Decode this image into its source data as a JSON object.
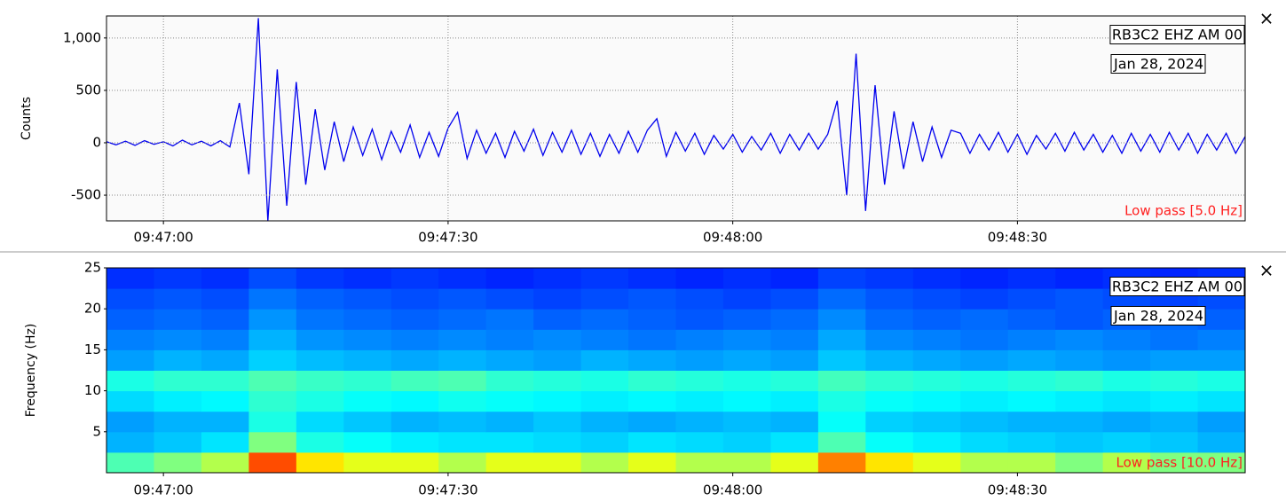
{
  "chart_data": [
    {
      "type": "line",
      "ylabel": "Counts",
      "station": "RB3C2 EHZ AM 00",
      "date": "Jan 28, 2024",
      "filter": "Low pass [5.0 Hz]",
      "close": "×",
      "color": "#0000ee",
      "grid": true,
      "xlim": [
        "09:46:54",
        "09:48:54"
      ],
      "xticks": [
        "09:47:00",
        "09:47:30",
        "09:48:00",
        "09:48:30"
      ],
      "ylim": [
        -745,
        1210
      ],
      "yticks": [
        -500,
        0,
        500,
        {
          "value": 1000,
          "label": "1,000"
        }
      ],
      "x": [
        "09:46:54",
        "09:46:55",
        "09:46:56",
        "09:46:57",
        "09:46:58",
        "09:46:59",
        "09:47:00",
        "09:47:01",
        "09:47:02",
        "09:47:03",
        "09:47:04",
        "09:47:05",
        "09:47:06",
        "09:47:07",
        "09:47:08",
        "09:47:09",
        "09:47:10",
        "09:47:11",
        "09:47:12",
        "09:47:13",
        "09:47:14",
        "09:47:15",
        "09:47:16",
        "09:47:17",
        "09:47:18",
        "09:47:19",
        "09:47:20",
        "09:47:21",
        "09:47:22",
        "09:47:23",
        "09:47:24",
        "09:47:25",
        "09:47:26",
        "09:47:27",
        "09:47:28",
        "09:47:29",
        "09:47:30",
        "09:47:31",
        "09:47:32",
        "09:47:33",
        "09:47:34",
        "09:47:35",
        "09:47:36",
        "09:47:37",
        "09:47:38",
        "09:47:39",
        "09:47:40",
        "09:47:41",
        "09:47:42",
        "09:47:43",
        "09:47:44",
        "09:47:45",
        "09:47:46",
        "09:47:47",
        "09:47:48",
        "09:47:49",
        "09:47:50",
        "09:47:51",
        "09:47:52",
        "09:47:53",
        "09:47:54",
        "09:47:55",
        "09:47:56",
        "09:47:57",
        "09:47:58",
        "09:47:59",
        "09:48:00",
        "09:48:01",
        "09:48:02",
        "09:48:03",
        "09:48:04",
        "09:48:05",
        "09:48:06",
        "09:48:07",
        "09:48:08",
        "09:48:09",
        "09:48:10",
        "09:48:11",
        "09:48:12",
        "09:48:13",
        "09:48:14",
        "09:48:15",
        "09:48:16",
        "09:48:17",
        "09:48:18",
        "09:48:19",
        "09:48:20",
        "09:48:21",
        "09:48:22",
        "09:48:23",
        "09:48:24",
        "09:48:25",
        "09:48:26",
        "09:48:27",
        "09:48:28",
        "09:48:29",
        "09:48:30",
        "09:48:31",
        "09:48:32",
        "09:48:33",
        "09:48:34",
        "09:48:35",
        "09:48:36",
        "09:48:37",
        "09:48:38",
        "09:48:39",
        "09:48:40",
        "09:48:41",
        "09:48:42",
        "09:48:43",
        "09:48:44",
        "09:48:45",
        "09:48:46",
        "09:48:47",
        "09:48:48",
        "09:48:49",
        "09:48:50",
        "09:48:51",
        "09:48:52",
        "09:48:53",
        "09:48:54"
      ],
      "values": [
        10,
        -20,
        15,
        -25,
        20,
        -15,
        10,
        -30,
        25,
        -20,
        15,
        -30,
        20,
        -40,
        380,
        -300,
        1190,
        -750,
        700,
        -600,
        580,
        -400,
        320,
        -260,
        200,
        -180,
        150,
        -120,
        130,
        -160,
        110,
        -90,
        170,
        -140,
        100,
        -130,
        140,
        290,
        -150,
        120,
        -100,
        90,
        -140,
        110,
        -80,
        130,
        -120,
        100,
        -90,
        120,
        -110,
        90,
        -130,
        80,
        -100,
        110,
        -90,
        120,
        230,
        -130,
        100,
        -80,
        90,
        -110,
        70,
        -60,
        80,
        -90,
        60,
        -70,
        90,
        -100,
        80,
        -70,
        90,
        -60,
        80,
        400,
        -500,
        850,
        -650,
        550,
        -400,
        300,
        -250,
        200,
        -180,
        150,
        -140,
        120,
        90,
        -100,
        80,
        -70,
        100,
        -90,
        80,
        -110,
        70,
        -60,
        90,
        -80,
        100,
        -70,
        80,
        -90,
        70,
        -100,
        90,
        -80,
        80,
        -90,
        100,
        -70,
        90,
        -100,
        80,
        -70,
        90,
        -100,
        60
      ]
    },
    {
      "type": "heatmap",
      "ylabel": "Frequency (Hz)",
      "station": "RB3C2 EHZ AM 00",
      "date": "Jan 28, 2024",
      "filter": "Low pass [10.0 Hz]",
      "close": "×",
      "colormap": "jet",
      "zlim": [
        0,
        1
      ],
      "xlim": [
        "09:46:54",
        "09:48:54"
      ],
      "xticks": [
        "09:47:00",
        "09:47:30",
        "09:48:00",
        "09:48:30"
      ],
      "ylim": [
        0,
        25
      ],
      "yticks": [
        5,
        10,
        15,
        20,
        25
      ],
      "x": [
        "09:46:54",
        "09:46:59",
        "09:47:04",
        "09:47:09",
        "09:47:14",
        "09:47:19",
        "09:47:24",
        "09:47:29",
        "09:47:34",
        "09:47:39",
        "09:47:44",
        "09:47:49",
        "09:47:54",
        "09:47:59",
        "09:48:04",
        "09:48:09",
        "09:48:14",
        "09:48:19",
        "09:48:24",
        "09:48:29",
        "09:48:34",
        "09:48:39",
        "09:48:44",
        "09:48:49"
      ],
      "bins": [
        0,
        2.5,
        5,
        7.5,
        10,
        12.5,
        15,
        17.5,
        20,
        22.5,
        25
      ],
      "z": [
        [
          0.45,
          0.5,
          0.55,
          0.8,
          0.65,
          0.6,
          0.6,
          0.55,
          0.6,
          0.6,
          0.55,
          0.6,
          0.55,
          0.55,
          0.6,
          0.75,
          0.65,
          0.6,
          0.55,
          0.55,
          0.5,
          0.55,
          0.5,
          0.5
        ],
        [
          0.3,
          0.32,
          0.35,
          0.5,
          0.4,
          0.38,
          0.36,
          0.35,
          0.35,
          0.34,
          0.33,
          0.35,
          0.34,
          0.33,
          0.35,
          0.45,
          0.38,
          0.36,
          0.34,
          0.33,
          0.32,
          0.33,
          0.32,
          0.3
        ],
        [
          0.28,
          0.3,
          0.3,
          0.4,
          0.34,
          0.32,
          0.3,
          0.31,
          0.3,
          0.32,
          0.3,
          0.29,
          0.3,
          0.31,
          0.3,
          0.38,
          0.33,
          0.32,
          0.31,
          0.3,
          0.3,
          0.29,
          0.3,
          0.28
        ],
        [
          0.34,
          0.36,
          0.37,
          0.42,
          0.4,
          0.38,
          0.37,
          0.39,
          0.38,
          0.37,
          0.36,
          0.37,
          0.36,
          0.37,
          0.36,
          0.4,
          0.38,
          0.37,
          0.36,
          0.37,
          0.36,
          0.35,
          0.36,
          0.35
        ],
        [
          0.4,
          0.42,
          0.42,
          0.45,
          0.43,
          0.42,
          0.44,
          0.45,
          0.42,
          0.41,
          0.4,
          0.42,
          0.41,
          0.4,
          0.41,
          0.44,
          0.42,
          0.41,
          0.4,
          0.41,
          0.42,
          0.4,
          0.41,
          0.4
        ],
        [
          0.28,
          0.3,
          0.29,
          0.33,
          0.31,
          0.3,
          0.29,
          0.3,
          0.29,
          0.28,
          0.3,
          0.29,
          0.28,
          0.29,
          0.28,
          0.32,
          0.3,
          0.29,
          0.28,
          0.29,
          0.28,
          0.27,
          0.28,
          0.28
        ],
        [
          0.25,
          0.26,
          0.25,
          0.3,
          0.27,
          0.26,
          0.25,
          0.26,
          0.25,
          0.26,
          0.25,
          0.24,
          0.25,
          0.26,
          0.25,
          0.29,
          0.26,
          0.25,
          0.24,
          0.25,
          0.26,
          0.25,
          0.24,
          0.25
        ],
        [
          0.22,
          0.23,
          0.22,
          0.27,
          0.24,
          0.23,
          0.22,
          0.23,
          0.24,
          0.22,
          0.23,
          0.22,
          0.21,
          0.22,
          0.23,
          0.26,
          0.23,
          0.22,
          0.23,
          0.22,
          0.21,
          0.22,
          0.23,
          0.22
        ],
        [
          0.2,
          0.21,
          0.2,
          0.24,
          0.22,
          0.21,
          0.2,
          0.21,
          0.2,
          0.19,
          0.2,
          0.21,
          0.2,
          0.19,
          0.2,
          0.23,
          0.21,
          0.2,
          0.19,
          0.2,
          0.21,
          0.2,
          0.19,
          0.2
        ],
        [
          0.17,
          0.18,
          0.17,
          0.2,
          0.18,
          0.17,
          0.18,
          0.17,
          0.16,
          0.17,
          0.18,
          0.17,
          0.16,
          0.17,
          0.16,
          0.19,
          0.18,
          0.17,
          0.16,
          0.17,
          0.16,
          0.17,
          0.16,
          0.17
        ]
      ]
    }
  ]
}
